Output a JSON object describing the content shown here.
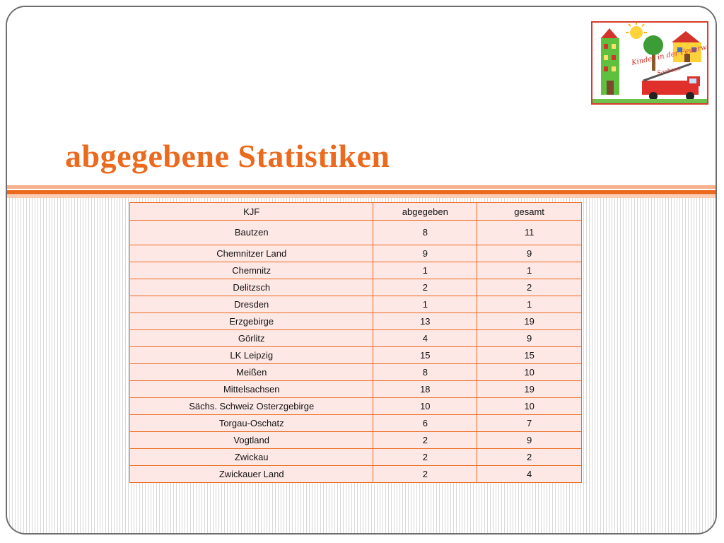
{
  "slide": {
    "title": "abgegebene Statistiken",
    "logo_text": "Kinder in der Feuerwehr",
    "logo_subtext": "Sachsen"
  },
  "table": {
    "headers": [
      "KJF",
      "abgegeben",
      "gesamt"
    ],
    "rows": [
      [
        "Bautzen",
        "8",
        "11"
      ],
      [
        "Chemnitzer Land",
        "9",
        "9"
      ],
      [
        "Chemnitz",
        "1",
        "1"
      ],
      [
        "Delitzsch",
        "2",
        "2"
      ],
      [
        "Dresden",
        "1",
        "1"
      ],
      [
        "Erzgebirge",
        "13",
        "19"
      ],
      [
        "Görlitz",
        "4",
        "9"
      ],
      [
        "LK Leipzig",
        "15",
        "15"
      ],
      [
        "Meißen",
        "8",
        "10"
      ],
      [
        "Mittelsachsen",
        "18",
        "19"
      ],
      [
        "Sächs. Schweiz Osterzgebirge",
        "10",
        "10"
      ],
      [
        "Torgau-Oschatz",
        "6",
        "7"
      ],
      [
        "Vogtland",
        "2",
        "9"
      ],
      [
        "Zwickau",
        "2",
        "2"
      ],
      [
        "Zwickauer Land",
        "2",
        "4"
      ]
    ]
  },
  "colors": {
    "accent": "#ec6a1e",
    "table_fill": "#fde8e6",
    "logo_border": "#d93a2b"
  }
}
